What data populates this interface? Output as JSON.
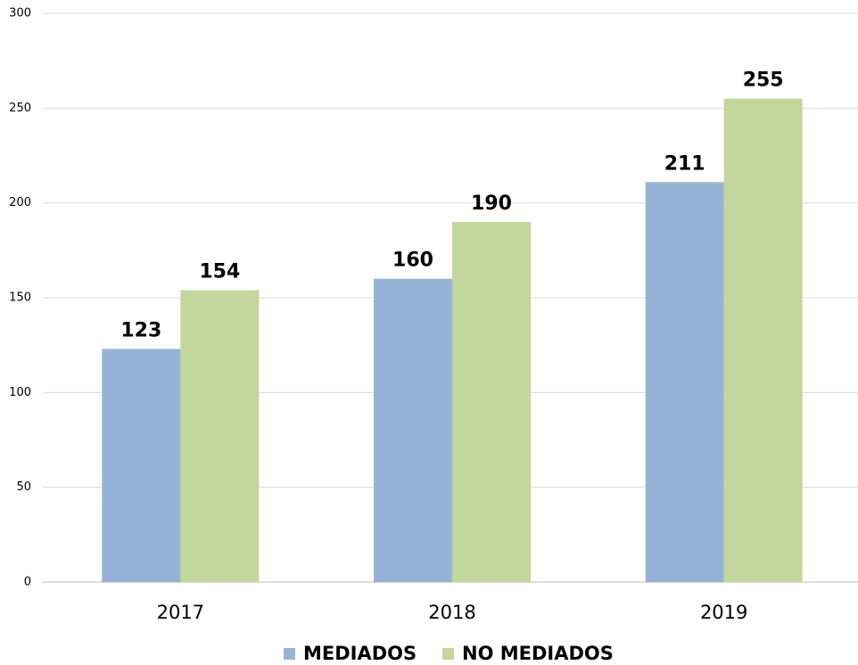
{
  "chart_data": {
    "type": "bar",
    "categories": [
      "2017",
      "2018",
      "2019"
    ],
    "series": [
      {
        "name": "MEDIADOS",
        "color": "#95b3d7",
        "values": [
          123,
          160,
          211
        ]
      },
      {
        "name": "NO MEDIADOS",
        "color": "#c3d69b",
        "values": [
          154,
          190,
          255
        ]
      }
    ],
    "ylim": [
      0,
      300
    ],
    "yticks": [
      0,
      50,
      100,
      150,
      200,
      250,
      300
    ],
    "grid": true,
    "legend": "bottom"
  }
}
